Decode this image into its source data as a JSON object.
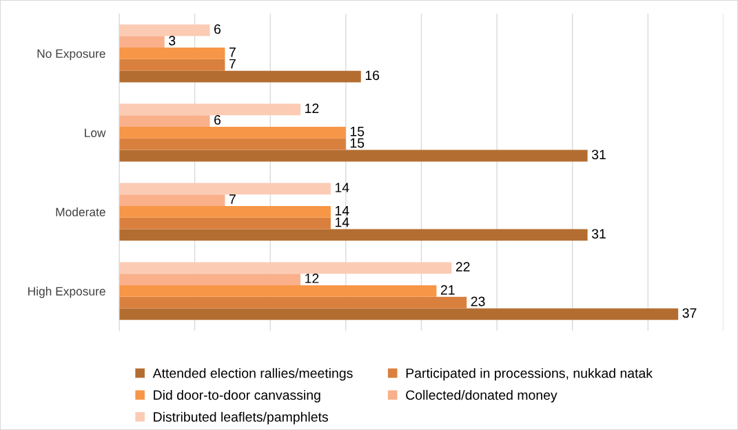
{
  "chart_data": {
    "type": "bar",
    "orientation": "horizontal",
    "categories": [
      "No Exposure",
      "Low",
      "Moderate",
      "High Exposure"
    ],
    "series": [
      {
        "name": "Attended election rallies/meetings",
        "color": "#b46d31",
        "values": [
          16,
          31,
          31,
          37
        ]
      },
      {
        "name": "Participated in processions, nukkad natak",
        "color": "#d9803f",
        "values": [
          7,
          15,
          14,
          23
        ]
      },
      {
        "name": "Did door-to-door canvassing",
        "color": "#f79646",
        "values": [
          7,
          15,
          14,
          21
        ]
      },
      {
        "name": "Collected/donated money",
        "color": "#f9b08b",
        "values": [
          3,
          6,
          7,
          12
        ]
      },
      {
        "name": "Distributed leaflets/pamphlets",
        "color": "#fbcbb4",
        "values": [
          6,
          12,
          14,
          22
        ]
      }
    ],
    "xlim": [
      0,
      40
    ],
    "xticks": [
      {
        "value": 0,
        "label": null
      },
      {
        "value": 5,
        "label": null
      },
      {
        "value": 10,
        "label": null
      },
      {
        "value": 15,
        "label": null
      },
      {
        "value": 20,
        "label": null
      },
      {
        "value": 25,
        "label": null
      },
      {
        "value": 30,
        "label": null
      },
      {
        "value": 35,
        "label": null
      },
      {
        "value": 40,
        "label": null
      }
    ],
    "tick_labels": "y",
    "grid": "x",
    "legend": "bottom",
    "data_labels": true
  }
}
